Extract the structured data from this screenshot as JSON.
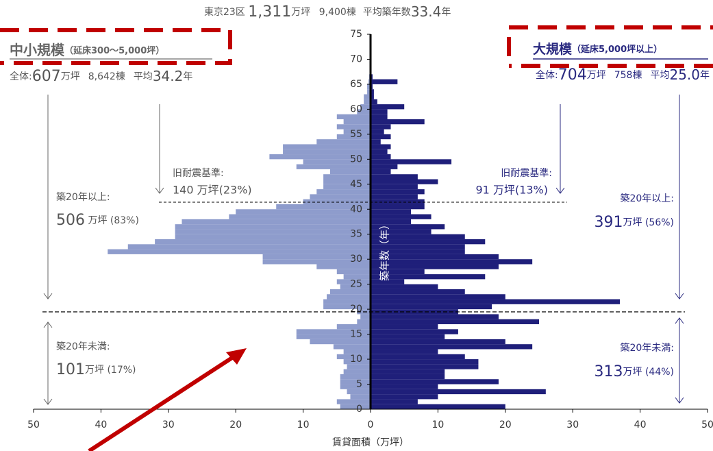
{
  "chart_data": {
    "type": "pyramid",
    "header": {
      "area": "東京23区",
      "total": "1,311",
      "unit": "万坪",
      "buildings": "9,400棟",
      "avg_label": "平均築年数",
      "avg": "33.4",
      "year": "年"
    },
    "left_title": {
      "name": "中小規模",
      "note": "（延床300～5,000坪）",
      "all": "全体:",
      "total": "607",
      "unit": "万坪",
      "buildings": "8,642棟",
      "avg_label": "平均",
      "avg": "34.2",
      "year": "年"
    },
    "right_title": {
      "name": "大規模",
      "note": "（延床5,000坪以上）",
      "all": "全体:",
      "total": "704",
      "unit": "万坪",
      "buildings": "758棟",
      "avg_label": "平均",
      "avg": "25.0",
      "year": "年"
    },
    "annotations": {
      "left_old": [
        "旧耐震基準:",
        "140 万坪(23%)"
      ],
      "right_old": [
        "旧耐震基準:",
        "91 万坪(13%)"
      ],
      "left_over": [
        "築20年以上:",
        "506",
        "万坪 (83%)"
      ],
      "right_over": [
        "築20年以上:",
        "391",
        "万坪 (56%)"
      ],
      "left_under": [
        "築20年未満:",
        "101",
        "万坪 (17%)"
      ],
      "right_under": [
        "築20年未満:",
        "313",
        "万坪 (44%)"
      ]
    },
    "y_label": "築年数（年）",
    "x_label": "賃貸面積（万坪）",
    "ages": [
      0,
      1,
      2,
      3,
      4,
      5,
      6,
      7,
      8,
      9,
      10,
      11,
      12,
      13,
      14,
      15,
      16,
      17,
      18,
      19,
      20,
      21,
      22,
      23,
      24,
      25,
      26,
      27,
      28,
      29,
      30,
      31,
      32,
      33,
      34,
      35,
      36,
      37,
      38,
      39,
      40,
      41,
      42,
      43,
      44,
      45,
      46,
      47,
      48,
      49,
      50,
      51,
      52,
      53,
      54,
      55,
      56,
      57,
      58,
      59,
      60,
      61,
      62,
      63,
      64,
      65,
      66
    ],
    "series": [
      {
        "name": "中小規模",
        "side": "left",
        "color": "#8e9ccc",
        "values": [
          4.5,
          5,
          3,
          3.5,
          4.5,
          4.5,
          4.5,
          4,
          3.5,
          4,
          5,
          4,
          5.5,
          9,
          11,
          11,
          5,
          2,
          1.5,
          2,
          7,
          7,
          6.5,
          6,
          4.5,
          5,
          4,
          5,
          8,
          16,
          16,
          39,
          36,
          32,
          29,
          29,
          29,
          28,
          21,
          20,
          14,
          10,
          9,
          8,
          7,
          7,
          7,
          6,
          11,
          10,
          15,
          13,
          13,
          8,
          5,
          4,
          5,
          4,
          5,
          2,
          1.5,
          1,
          1,
          0.5,
          0.5,
          0.3,
          0.2
        ]
      },
      {
        "name": "大規模",
        "side": "right",
        "color": "#1f1f7a",
        "values": [
          20,
          7,
          10,
          26,
          10,
          19,
          11,
          11,
          16,
          16,
          14,
          10,
          24,
          20,
          11,
          13,
          10,
          25,
          19,
          13,
          18,
          37,
          20,
          14,
          10,
          5,
          17,
          8,
          19,
          24,
          19,
          14,
          14,
          17,
          14,
          9,
          11,
          6,
          9,
          6,
          8,
          8,
          7,
          8,
          7,
          10,
          7,
          3,
          4,
          12,
          3,
          2.5,
          3,
          1.5,
          3,
          2,
          3,
          8,
          2.5,
          2.5,
          5,
          1,
          0.5,
          0.5,
          0.3,
          4,
          0.3
        ]
      }
    ],
    "xlim": [
      0,
      50
    ],
    "xticks": [
      0,
      10,
      20,
      30,
      40,
      50
    ],
    "ylim": [
      0,
      75
    ],
    "yticks": [
      0,
      5,
      10,
      15,
      20,
      25,
      30,
      35,
      40,
      45,
      50,
      55,
      60,
      65,
      70,
      75
    ]
  }
}
